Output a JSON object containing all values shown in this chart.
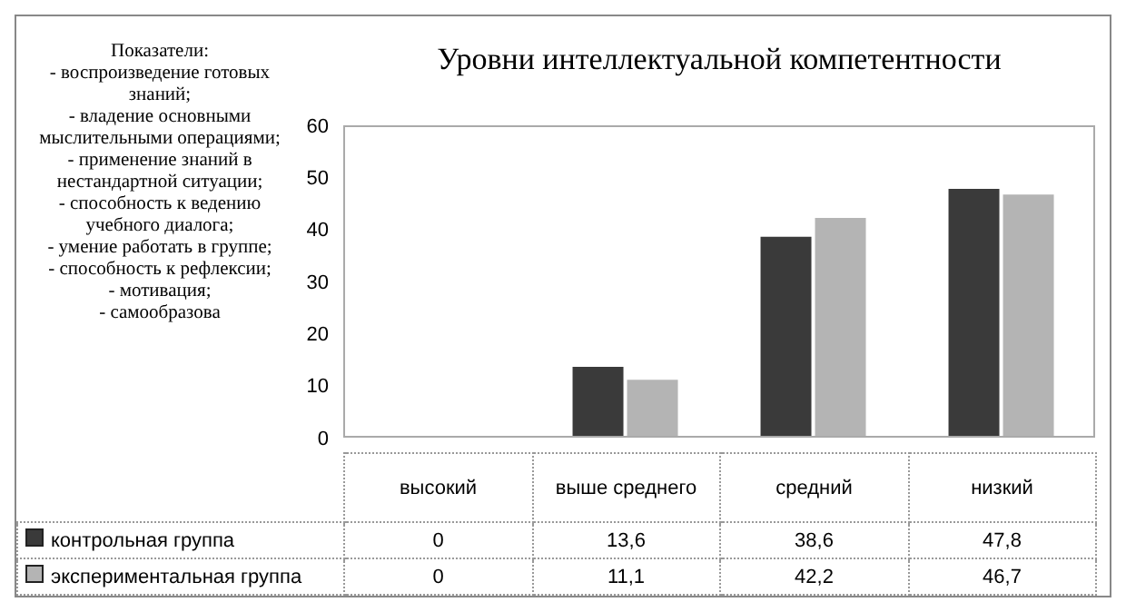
{
  "chart_data": {
    "type": "bar",
    "title": "Уровни интеллектуальной компетентности",
    "categories": [
      "высокий",
      "выше среднего",
      "средний",
      "низкий"
    ],
    "series": [
      {
        "name": "контрольная группа",
        "color": "#3a3a3a",
        "values": [
          0,
          13.6,
          38.6,
          47.8
        ],
        "value_labels": [
          "0",
          "13,6",
          "38,6",
          "47,8"
        ]
      },
      {
        "name": "экспериментальная группа",
        "color": "#b4b4b4",
        "values": [
          0,
          11.1,
          42.2,
          46.7
        ],
        "value_labels": [
          "0",
          "11,1",
          "42,2",
          "46,7"
        ]
      }
    ],
    "ylim": [
      0,
      60
    ],
    "yticks": [
      0,
      10,
      20,
      30,
      40,
      50,
      60
    ],
    "grid": false,
    "legend": "bottom",
    "annotations": [
      "Показатели:",
      "- воспроизведение готовых знаний;",
      "- владение основными мыслительными операциями;",
      "- применение знаний в нестандартной ситуации;",
      "- способность к ведению учебного диалога;",
      "- умение работать в группе;",
      "- способность к рефлексии;",
      "- мотивация;",
      "- самообразова"
    ]
  }
}
